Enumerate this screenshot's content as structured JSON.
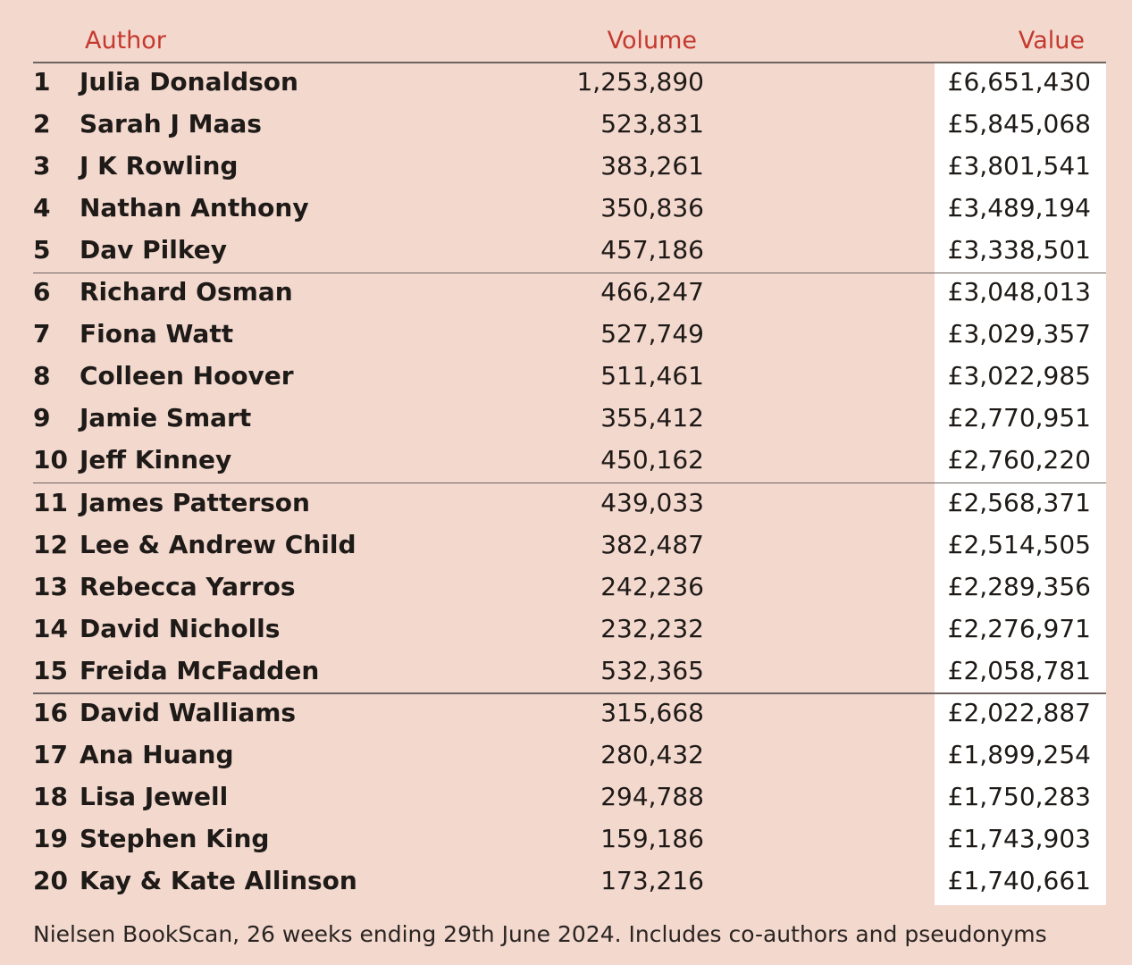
{
  "table": {
    "header": [
      "Author",
      "Volume",
      "Value"
    ],
    "rows": [
      [
        1,
        "Julia Donaldson",
        "1,253,890",
        "£6,651,430"
      ],
      [
        2,
        "Sarah J Maas",
        "523,831",
        "£5,845,068"
      ],
      [
        3,
        "J K Rowling",
        "383,261",
        "£3,801,541"
      ],
      [
        4,
        "Nathan Anthony",
        "350,836",
        "£3,489,194"
      ],
      [
        5,
        "Dav Pilkey",
        "457,186",
        "£3,338,501"
      ],
      [
        6,
        "Richard Osman",
        "466,247",
        "£3,048,013"
      ],
      [
        7,
        "Fiona Watt",
        "527,749",
        "£3,029,357"
      ],
      [
        8,
        "Colleen Hoover",
        "511,461",
        "£3,022,985"
      ],
      [
        9,
        "Jamie Smart",
        "355,412",
        "£2,770,951"
      ],
      [
        10,
        "Jeff Kinney",
        "450,162",
        "£2,760,220"
      ],
      [
        11,
        "James Patterson",
        "439,033",
        "£2,568,371"
      ],
      [
        12,
        "Lee & Andrew Child",
        "382,487",
        "£2,514,505"
      ],
      [
        13,
        "Rebecca Yarros",
        "242,236",
        "£2,289,356"
      ],
      [
        14,
        "David Nicholls",
        "232,232",
        "£2,276,971"
      ],
      [
        15,
        "Freida McFadden",
        "532,365",
        "£2,058,781"
      ],
      [
        16,
        "David Walliams",
        "315,668",
        "£2,022,887"
      ],
      [
        17,
        "Ana Huang",
        "280,432",
        "£1,899,254"
      ],
      [
        18,
        "Lisa Jewell",
        "294,788",
        "£1,750,283"
      ],
      [
        19,
        "Stephen King",
        "159,186",
        "£1,743,903"
      ],
      [
        20,
        "Kay & Kate Allinson",
        "173,216",
        "£1,740,661"
      ]
    ]
  },
  "footnote": "Nielsen BookScan, 26 weeks ending 29th June 2024. Includes co-authors and pseudonyms"
}
